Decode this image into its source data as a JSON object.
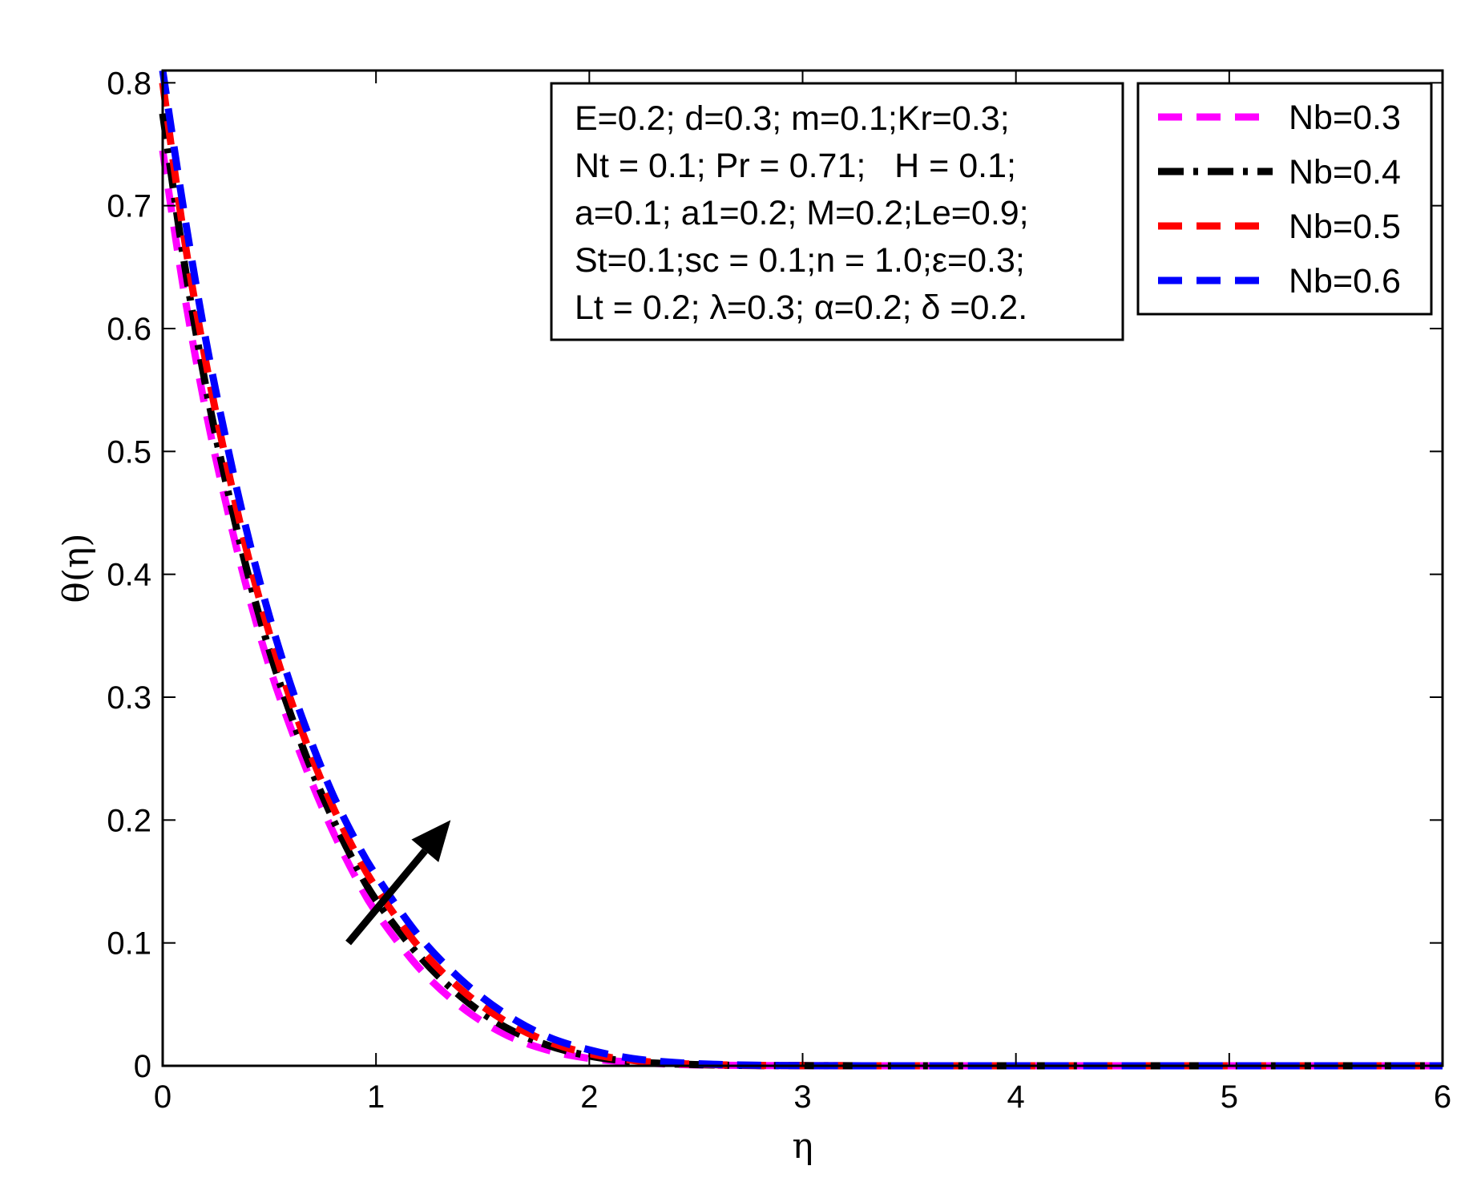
{
  "chart_data": {
    "type": "line",
    "xlabel": "η",
    "ylabel": "θ(η)",
    "xlim": [
      0,
      6
    ],
    "ylim": [
      0,
      0.81
    ],
    "xticks": [
      0,
      1,
      2,
      3,
      4,
      5,
      6
    ],
    "yticks": [
      0,
      0.1,
      0.2,
      0.3,
      0.4,
      0.5,
      0.6,
      0.7,
      0.8
    ],
    "xtick_labels": [
      "0",
      "1",
      "2",
      "3",
      "4",
      "5",
      "6"
    ],
    "ytick_labels": [
      "0",
      "0.1",
      "0.2",
      "0.3",
      "0.4",
      "0.5",
      "0.6",
      "0.7",
      "0.8"
    ],
    "grid": false,
    "legend_position": "top-right",
    "x": [
      0,
      0.1,
      0.2,
      0.3,
      0.4,
      0.5,
      0.6,
      0.7,
      0.8,
      0.9,
      1.0,
      1.2,
      1.4,
      1.6,
      1.8,
      2.0,
      2.2,
      2.4,
      2.6,
      2.8,
      3.0,
      3.5,
      4.0,
      4.5,
      5.0,
      5.5,
      6.0
    ],
    "series": [
      {
        "name": "Nb=0.3",
        "color": "#ff00ff",
        "dash": "dashed",
        "values": [
          0.745,
          0.63,
          0.535,
          0.455,
          0.385,
          0.325,
          0.275,
          0.23,
          0.19,
          0.155,
          0.125,
          0.08,
          0.048,
          0.026,
          0.013,
          0.006,
          0.003,
          0.0012,
          0.0005,
          0.0002,
          0.0001,
          0,
          0,
          0,
          0,
          0,
          0
        ]
      },
      {
        "name": "Nb=0.4",
        "color": "#000000",
        "dash": "dash-dot",
        "values": [
          0.775,
          0.655,
          0.555,
          0.472,
          0.4,
          0.338,
          0.286,
          0.24,
          0.2,
          0.165,
          0.135,
          0.09,
          0.056,
          0.032,
          0.017,
          0.008,
          0.0035,
          0.0015,
          0.0006,
          0.0002,
          0.0001,
          0,
          0,
          0,
          0,
          0,
          0
        ]
      },
      {
        "name": "Nb=0.5",
        "color": "#ff0000",
        "dash": "dashed",
        "values": [
          0.8,
          0.675,
          0.575,
          0.49,
          0.415,
          0.352,
          0.298,
          0.251,
          0.21,
          0.175,
          0.145,
          0.097,
          0.062,
          0.037,
          0.02,
          0.01,
          0.0045,
          0.002,
          0.0008,
          0.0003,
          0.0001,
          0,
          0,
          0,
          0,
          0,
          0
        ]
      },
      {
        "name": "Nb=0.6",
        "color": "#0000ff",
        "dash": "dashed",
        "values": [
          0.81,
          0.695,
          0.593,
          0.507,
          0.431,
          0.366,
          0.31,
          0.262,
          0.22,
          0.185,
          0.155,
          0.106,
          0.07,
          0.043,
          0.024,
          0.013,
          0.006,
          0.0027,
          0.0011,
          0.0004,
          0.0001,
          0,
          0,
          0,
          0,
          0,
          0
        ]
      }
    ],
    "annotation_box": [
      "E=0.2; d=0.3; m=0.1;Kr=0.3;",
      "Nt = 0.1; Pr = 0.71;   H = 0.1;",
      "a=0.1; a1=0.2; M=0.2;Le=0.9;",
      "St=0.1;sc = 0.1;n = 1.0;ε=0.3;",
      "Lt = 0.2; λ=0.3; α=0.2; δ =0.2."
    ],
    "arrow": {
      "from": [
        0.87,
        0.1
      ],
      "to": [
        1.35,
        0.2
      ],
      "meaning": "increasing Nb"
    }
  }
}
